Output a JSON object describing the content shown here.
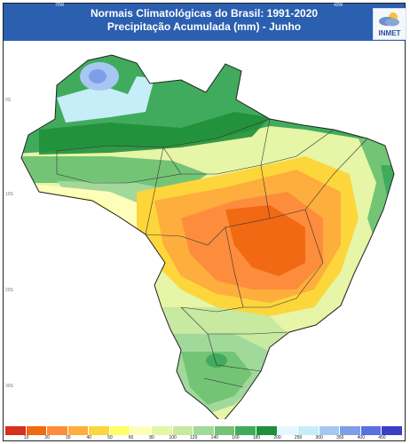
{
  "header": {
    "title_line1": "Normais Climatológicas do Brasil: 1991-2020",
    "title_line2": "Precipitação Acumulada (mm) - Junho",
    "logo_text": "INMET",
    "top_ticks": [
      "70W",
      "40W"
    ]
  },
  "map": {
    "lat_labels": [
      "0S",
      "10S",
      "20S",
      "30S"
    ]
  },
  "legend": {
    "colors": [
      "#d7301f",
      "#f16913",
      "#fd8d3c",
      "#fdae3c",
      "#fdd63c",
      "#ffff66",
      "#fefebb",
      "#e6f5a6",
      "#c7e9a0",
      "#a1d99b",
      "#74c476",
      "#41ab5d",
      "#1f8f3a",
      "#e5f8ff",
      "#c6eef9",
      "#a7c7f2",
      "#7f9ee8",
      "#5a6fe0",
      "#3a3fc8"
    ],
    "labels": [
      "10",
      "20",
      "30",
      "40",
      "50",
      "60",
      "80",
      "100",
      "120",
      "140",
      "160",
      "180",
      "200",
      "250",
      "300",
      "350",
      "400",
      "450"
    ]
  }
}
